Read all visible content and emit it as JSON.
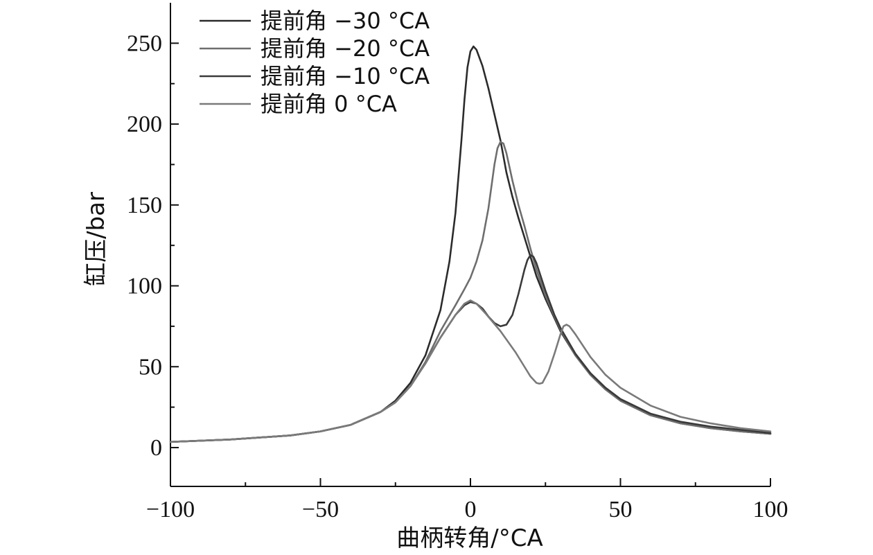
{
  "chart_data": {
    "type": "line",
    "title": "",
    "xlabel": "曲柄转角/°CA",
    "ylabel": "缸压/bar",
    "xlim": [
      -100,
      100
    ],
    "ylim": [
      -24,
      275
    ],
    "xticks": [
      -100,
      -50,
      0,
      50,
      100
    ],
    "xtick_labels": [
      "−100",
      "−50",
      "0",
      "50",
      "100"
    ],
    "yticks": [
      0,
      50,
      100,
      150,
      200,
      250
    ],
    "ytick_labels": [
      "0",
      "50",
      "100",
      "150",
      "200",
      "250"
    ],
    "grid": false,
    "legend_position": "top-left",
    "series": [
      {
        "name": "提前角 −30 °CA",
        "color": "#2b2b2b",
        "points": [
          [
            -100,
            3.5
          ],
          [
            -80,
            5
          ],
          [
            -60,
            7.5
          ],
          [
            -50,
            10
          ],
          [
            -40,
            14
          ],
          [
            -30,
            22
          ],
          [
            -25,
            29
          ],
          [
            -20,
            40
          ],
          [
            -15,
            57
          ],
          [
            -10,
            85
          ],
          [
            -7,
            115
          ],
          [
            -5,
            145
          ],
          [
            -3,
            190
          ],
          [
            -2,
            215
          ],
          [
            -1,
            235
          ],
          [
            0,
            245
          ],
          [
            1,
            248
          ],
          [
            2,
            246
          ],
          [
            4,
            236
          ],
          [
            6,
            222
          ],
          [
            8,
            206
          ],
          [
            10,
            190
          ],
          [
            12,
            170
          ],
          [
            14,
            155
          ],
          [
            16,
            142
          ],
          [
            18,
            130
          ],
          [
            20,
            118
          ],
          [
            22,
            106
          ],
          [
            25,
            92
          ],
          [
            28,
            80
          ],
          [
            30,
            72
          ],
          [
            35,
            57
          ],
          [
            40,
            45
          ],
          [
            45,
            36
          ],
          [
            50,
            29
          ],
          [
            60,
            20
          ],
          [
            70,
            15
          ],
          [
            80,
            12
          ],
          [
            90,
            10
          ],
          [
            100,
            8.5
          ]
        ]
      },
      {
        "name": "提前角 −20 °CA",
        "color": "#6e6e6e",
        "points": [
          [
            -100,
            3.5
          ],
          [
            -80,
            5
          ],
          [
            -60,
            7.5
          ],
          [
            -50,
            10
          ],
          [
            -40,
            14
          ],
          [
            -30,
            22
          ],
          [
            -25,
            28
          ],
          [
            -20,
            38
          ],
          [
            -15,
            53
          ],
          [
            -10,
            72
          ],
          [
            -5,
            88
          ],
          [
            -2,
            98
          ],
          [
            0,
            105
          ],
          [
            2,
            115
          ],
          [
            4,
            128
          ],
          [
            6,
            148
          ],
          [
            8,
            175
          ],
          [
            9,
            185
          ],
          [
            10,
            189
          ],
          [
            11,
            188
          ],
          [
            12,
            182
          ],
          [
            14,
            165
          ],
          [
            16,
            150
          ],
          [
            18,
            137
          ],
          [
            20,
            123
          ],
          [
            22,
            110
          ],
          [
            25,
            94
          ],
          [
            28,
            81
          ],
          [
            30,
            73
          ],
          [
            35,
            57
          ],
          [
            40,
            45
          ],
          [
            45,
            36
          ],
          [
            50,
            29
          ],
          [
            60,
            20
          ],
          [
            70,
            15
          ],
          [
            80,
            12
          ],
          [
            90,
            10
          ],
          [
            100,
            8.5
          ]
        ]
      },
      {
        "name": "提前角 −10 °CA",
        "color": "#3a3a3a",
        "points": [
          [
            -100,
            3.5
          ],
          [
            -80,
            5
          ],
          [
            -60,
            7.5
          ],
          [
            -50,
            10
          ],
          [
            -40,
            14
          ],
          [
            -30,
            22
          ],
          [
            -25,
            28
          ],
          [
            -20,
            38
          ],
          [
            -15,
            52
          ],
          [
            -10,
            68
          ],
          [
            -5,
            82
          ],
          [
            -2,
            88
          ],
          [
            0,
            90
          ],
          [
            2,
            89
          ],
          [
            4,
            86
          ],
          [
            6,
            81
          ],
          [
            8,
            77
          ],
          [
            10,
            75
          ],
          [
            12,
            76
          ],
          [
            14,
            82
          ],
          [
            16,
            95
          ],
          [
            18,
            110
          ],
          [
            19,
            116
          ],
          [
            20,
            119
          ],
          [
            21,
            118
          ],
          [
            22,
            114
          ],
          [
            25,
            97
          ],
          [
            28,
            82
          ],
          [
            30,
            74
          ],
          [
            35,
            58
          ],
          [
            40,
            46
          ],
          [
            45,
            37
          ],
          [
            50,
            30
          ],
          [
            60,
            21
          ],
          [
            70,
            16
          ],
          [
            80,
            13
          ],
          [
            90,
            11
          ],
          [
            100,
            9
          ]
        ]
      },
      {
        "name": "提前角 0 °CA",
        "color": "#7a7a7a",
        "points": [
          [
            -100,
            3.5
          ],
          [
            -80,
            5
          ],
          [
            -60,
            7.5
          ],
          [
            -50,
            10
          ],
          [
            -40,
            14
          ],
          [
            -30,
            22
          ],
          [
            -25,
            28
          ],
          [
            -20,
            38
          ],
          [
            -15,
            52
          ],
          [
            -10,
            68
          ],
          [
            -5,
            82
          ],
          [
            -2,
            89
          ],
          [
            0,
            91
          ],
          [
            2,
            89
          ],
          [
            5,
            83
          ],
          [
            10,
            72
          ],
          [
            15,
            59
          ],
          [
            18,
            50
          ],
          [
            20,
            44
          ],
          [
            22,
            40
          ],
          [
            23,
            39.5
          ],
          [
            24,
            40
          ],
          [
            26,
            47
          ],
          [
            28,
            58
          ],
          [
            30,
            70
          ],
          [
            31,
            75
          ],
          [
            32,
            76
          ],
          [
            33,
            75
          ],
          [
            35,
            70
          ],
          [
            40,
            56
          ],
          [
            45,
            45
          ],
          [
            50,
            37
          ],
          [
            60,
            26
          ],
          [
            70,
            19
          ],
          [
            80,
            15
          ],
          [
            90,
            12
          ],
          [
            100,
            10
          ]
        ]
      }
    ]
  }
}
